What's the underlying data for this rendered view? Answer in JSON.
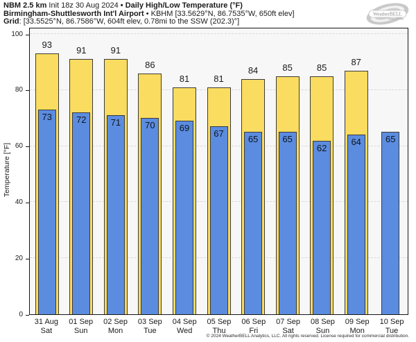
{
  "header": {
    "l1a": "NBM 2.5 km",
    "l1b": " Init 18z 30 Aug 2024 ",
    "l1c": "• Daily High/Low Temperature (°F)",
    "l2a": "Birmingham-Shuttlesworth Int'l Airport",
    "l2b": " • KBHM [33.5629°N, 86.7535°W, 650ft elev]",
    "l3a": "Grid",
    "l3b": ": [33.5525°N, 86.7586°W, 604ft elev, 0.78mi to the SSW (202.3)°]"
  },
  "logo": {
    "text": "WeatherBELL"
  },
  "chart_data": {
    "type": "bar",
    "title": "Daily High/Low Temperature (°F)",
    "ylabel": "Temperature [°F]",
    "ylim": [
      0,
      102
    ],
    "yticks": [
      0,
      20,
      40,
      60,
      80,
      100
    ],
    "grid": "horizontal-dashed",
    "legend": false,
    "categories": [
      {
        "date": "31 Aug",
        "day": "Sat"
      },
      {
        "date": "01 Sep",
        "day": "Sun"
      },
      {
        "date": "02 Sep",
        "day": "Mon"
      },
      {
        "date": "03 Sep",
        "day": "Tue"
      },
      {
        "date": "04 Sep",
        "day": "Wed"
      },
      {
        "date": "05 Sep",
        "day": "Thu"
      },
      {
        "date": "06 Sep",
        "day": "Fri"
      },
      {
        "date": "07 Sep",
        "day": "Sat"
      },
      {
        "date": "08 Sep",
        "day": "Sun"
      },
      {
        "date": "09 Sep",
        "day": "Mon"
      },
      {
        "date": "10 Sep",
        "day": "Tue"
      }
    ],
    "series": [
      {
        "name": "Daily High",
        "color": "#fadc60",
        "values": [
          93,
          91,
          91,
          86,
          81,
          81,
          84,
          85,
          85,
          87,
          null
        ]
      },
      {
        "name": "Daily Low",
        "color": "#5b8ce0",
        "values": [
          73,
          72,
          71,
          70,
          69,
          67,
          65,
          65,
          62,
          64,
          65
        ]
      }
    ]
  },
  "colors": {
    "plot_background": "#f7f7f7",
    "gridline": "#d7d7d7",
    "frame": "#151515",
    "bar_border": "#3a3a3a"
  },
  "footer": "© 2024 WeatherBELL Analytics, LLC. All rights reserved. License required for commercial distribution."
}
